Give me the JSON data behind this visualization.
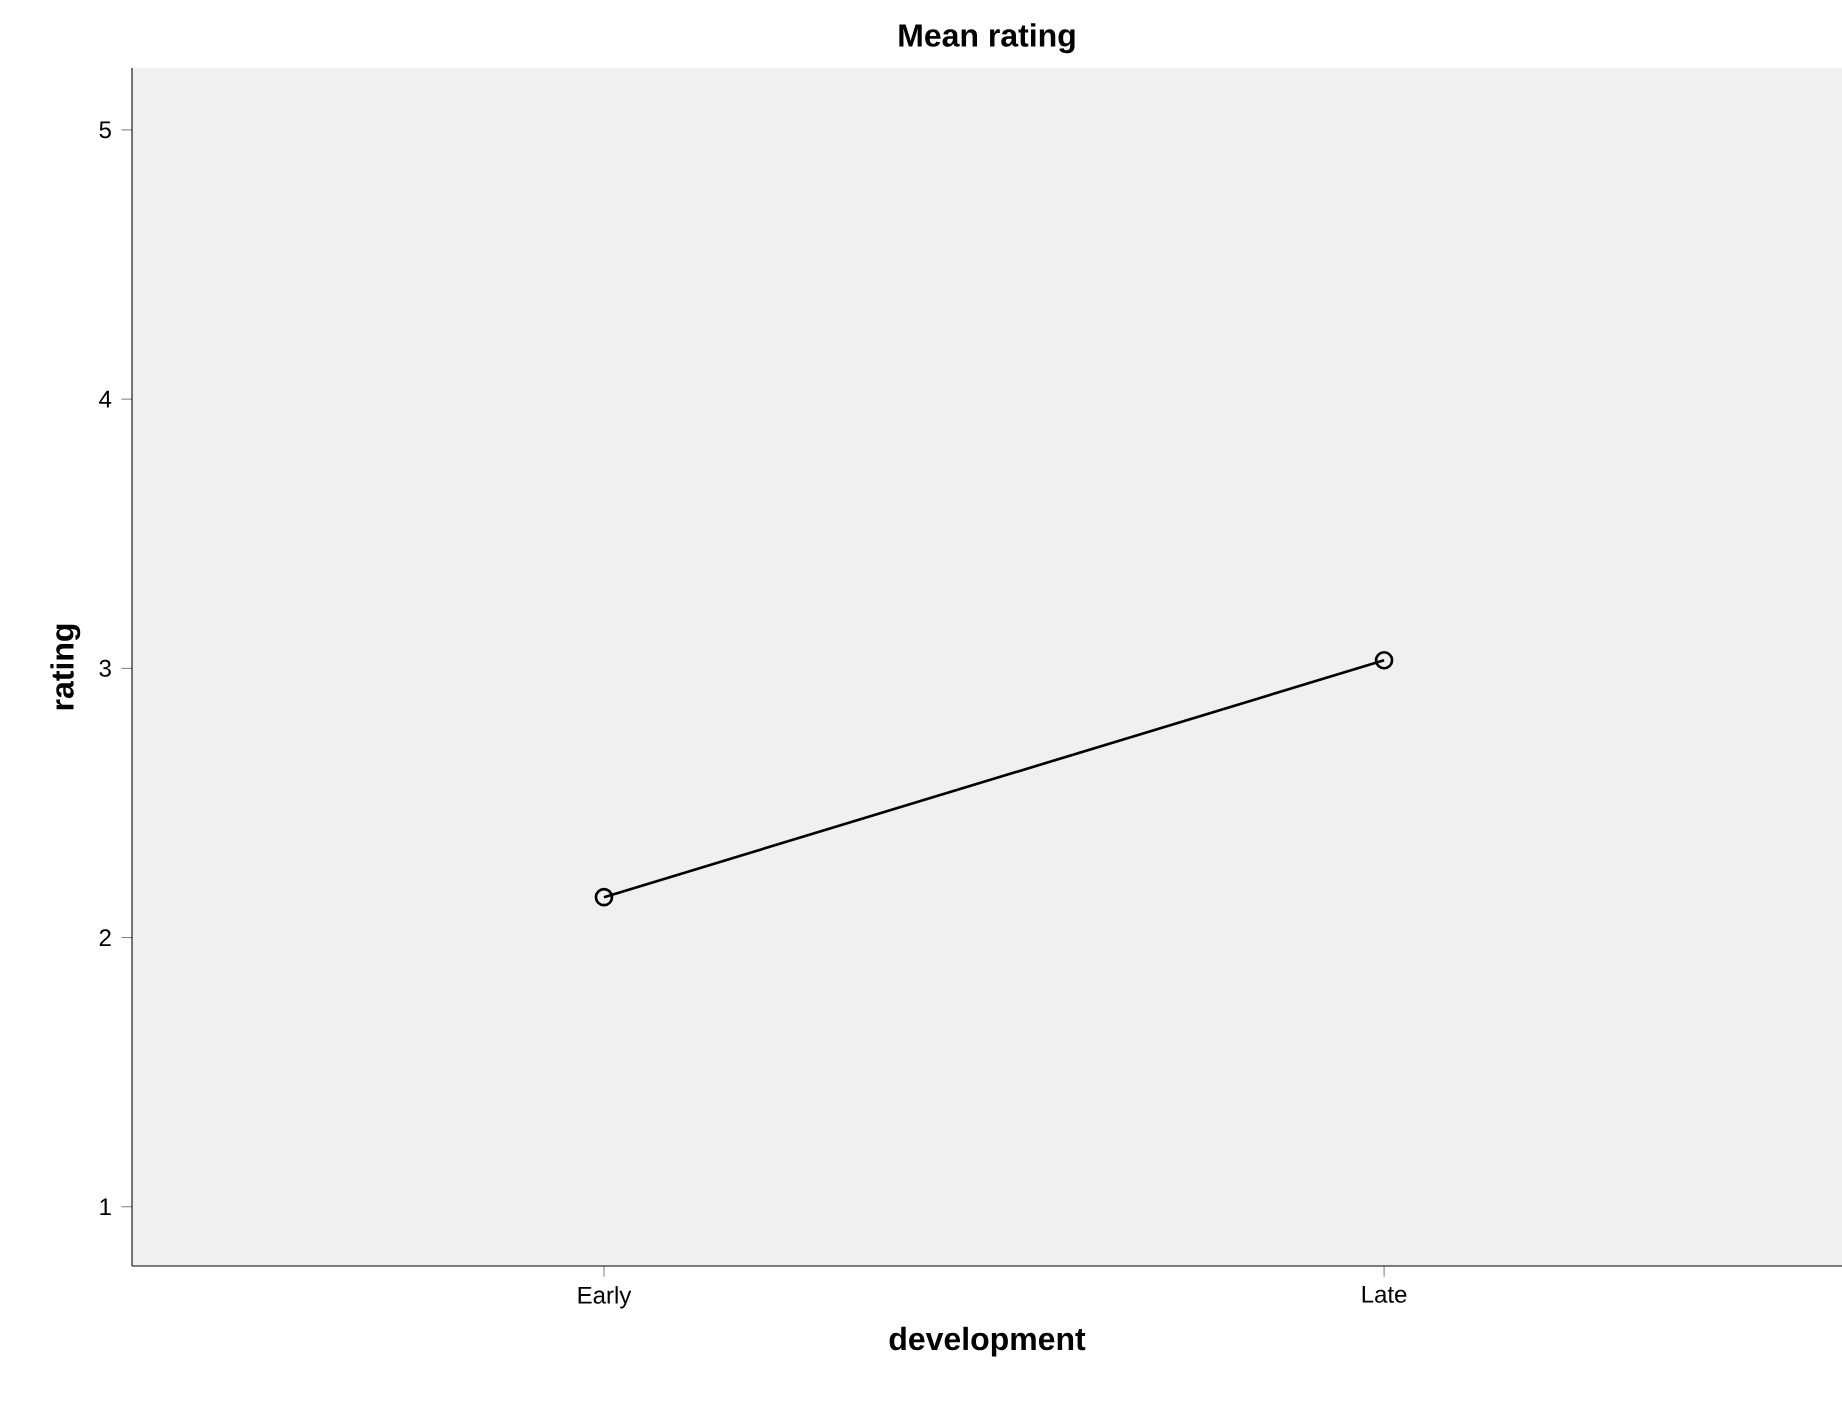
{
  "chart_data": {
    "type": "line",
    "title": "Mean rating",
    "xlabel": "development",
    "ylabel": "rating",
    "categories": [
      "Early",
      "Late"
    ],
    "series": [
      {
        "color": "#000000",
        "values": [
          2.15,
          3.03
        ]
      }
    ],
    "ylim": [
      0.78,
      5.23
    ],
    "yticks": [
      1,
      2,
      3,
      4,
      5
    ],
    "marker": "circle",
    "line_style": "solid",
    "grid": false
  }
}
